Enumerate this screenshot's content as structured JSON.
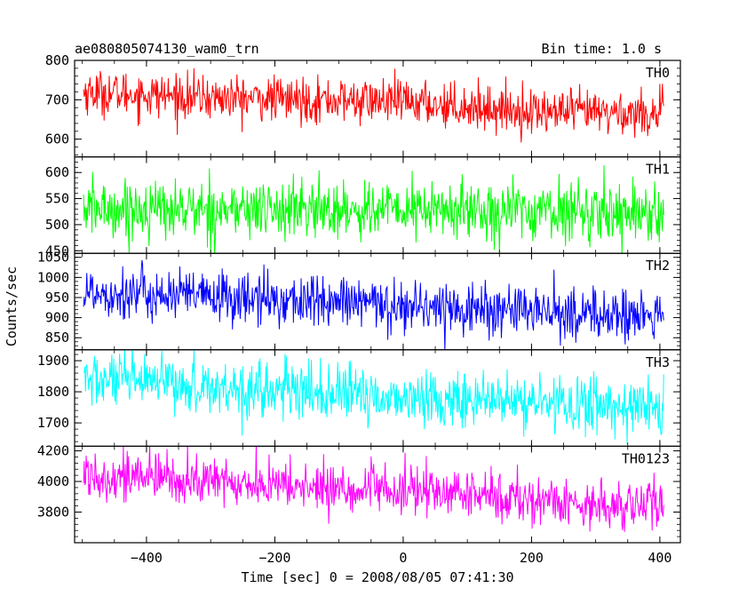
{
  "header": {
    "title": "ae080805074130_wam0_trn",
    "bin_time": "Bin time: 1.0 s"
  },
  "chart_data": {
    "type": "line",
    "xlabel": "Time [sec] 0 = 2008/08/05 07:41:30",
    "ylabel": "Counts/sec",
    "xlim": [
      -512,
      432
    ],
    "x_ticks": [
      -400,
      -200,
      0,
      200,
      400
    ],
    "x_range": [
      -498,
      406
    ],
    "grid": false,
    "panels": [
      {
        "name": "TH0",
        "color": "#ff0000",
        "ylim": [
          555,
          800
        ],
        "y_ticks": [
          600,
          700,
          800
        ],
        "trend": [
          [
            -498,
            720
          ],
          [
            -300,
            705
          ],
          [
            0,
            695
          ],
          [
            200,
            670
          ],
          [
            406,
            665
          ]
        ],
        "noise_sd": 28,
        "clip": [
          0,
          0.5
        ]
      },
      {
        "name": "TH1",
        "color": "#00ff00",
        "ylim": [
          445,
          630
        ],
        "y_ticks": [
          450,
          500,
          550,
          600
        ],
        "trend": [
          [
            -498,
            530
          ],
          [
            0,
            528
          ],
          [
            406,
            525
          ]
        ],
        "noise_sd": 28
      },
      {
        "name": "TH2",
        "color": "#0000ff",
        "ylim": [
          820,
          1060
        ],
        "y_ticks": [
          850,
          900,
          950,
          1000,
          1050
        ],
        "trend": [
          [
            -498,
            965
          ],
          [
            0,
            930
          ],
          [
            406,
            900
          ]
        ],
        "noise_sd": 33,
        "clip": [
          0.5,
          0.3
        ]
      },
      {
        "name": "TH3",
        "color": "#00ffff",
        "ylim": [
          1625,
          1935
        ],
        "y_ticks": [
          1700,
          1800,
          1900
        ],
        "trend": [
          [
            -498,
            1840
          ],
          [
            0,
            1780
          ],
          [
            406,
            1750
          ]
        ],
        "noise_sd": 45,
        "clip": [
          0.4,
          0.8
        ]
      },
      {
        "name": "TH0123",
        "color": "#ff00ff",
        "ylim": [
          3600,
          4230
        ],
        "y_ticks": [
          3800,
          4000,
          4200
        ],
        "trend": [
          [
            -498,
            4050
          ],
          [
            -100,
            3950
          ],
          [
            100,
            3920
          ],
          [
            250,
            3860
          ],
          [
            406,
            3840
          ]
        ],
        "noise_sd": 80,
        "clip": [
          0.5,
          0.5
        ]
      }
    ]
  }
}
